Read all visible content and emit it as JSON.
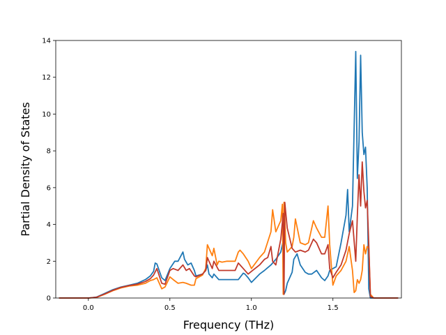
{
  "chart_data": {
    "type": "line",
    "title": "",
    "xlabel": "Frequency (THz)",
    "ylabel": "Partial Density of States",
    "xlim": [
      -0.2,
      1.92
    ],
    "ylim": [
      0,
      14
    ],
    "grid": false,
    "legend": "none",
    "xticks": [
      0.0,
      0.5,
      1.0,
      1.5
    ],
    "xtick_labels": [
      "0.0",
      "0.5",
      "1.0",
      "1.5"
    ],
    "yticks": [
      0,
      2,
      4,
      6,
      8,
      10,
      12,
      14
    ],
    "ytick_labels": [
      "0",
      "2",
      "4",
      "6",
      "8",
      "10",
      "12",
      "14"
    ],
    "series": [
      {
        "color": "#1f77b4",
        "x": [
          -0.18,
          -0.1,
          0.0,
          0.05,
          0.1,
          0.15,
          0.2,
          0.25,
          0.3,
          0.35,
          0.38,
          0.4,
          0.41,
          0.42,
          0.45,
          0.47,
          0.5,
          0.53,
          0.55,
          0.58,
          0.59,
          0.61,
          0.63,
          0.65,
          0.66,
          0.7,
          0.72,
          0.73,
          0.74,
          0.76,
          0.77,
          0.8,
          0.85,
          0.9,
          0.92,
          0.95,
          0.96,
          0.98,
          1.0,
          1.05,
          1.08,
          1.12,
          1.15,
          1.18,
          1.195,
          1.2,
          1.21,
          1.22,
          1.25,
          1.26,
          1.28,
          1.3,
          1.33,
          1.35,
          1.37,
          1.4,
          1.43,
          1.45,
          1.47,
          1.48,
          1.5,
          1.52,
          1.55,
          1.58,
          1.59,
          1.6,
          1.62,
          1.64,
          1.65,
          1.66,
          1.67,
          1.68,
          1.69,
          1.7,
          1.71,
          1.72,
          1.73,
          1.75,
          1.85,
          1.9
        ],
        "y": [
          0,
          0,
          0,
          0.05,
          0.25,
          0.45,
          0.6,
          0.7,
          0.8,
          1.0,
          1.2,
          1.45,
          1.9,
          1.85,
          1.1,
          0.95,
          1.6,
          2.0,
          2.0,
          2.5,
          2.1,
          1.8,
          1.9,
          1.5,
          1.2,
          1.3,
          1.5,
          1.8,
          1.3,
          1.1,
          1.3,
          1.0,
          1.0,
          1.0,
          1.0,
          1.35,
          1.3,
          1.1,
          0.85,
          1.3,
          1.5,
          1.8,
          2.1,
          2.5,
          3.1,
          0.2,
          0.4,
          0.8,
          1.4,
          2.1,
          2.4,
          1.8,
          1.4,
          1.3,
          1.3,
          1.5,
          1.1,
          0.95,
          1.2,
          1.5,
          1.6,
          1.7,
          3.0,
          4.5,
          5.9,
          3.6,
          5.0,
          13.4,
          6.5,
          8.5,
          13.2,
          9.0,
          7.8,
          8.2,
          6.0,
          0.5,
          0,
          0,
          0,
          0
        ]
      },
      {
        "color": "#ff7f0e",
        "x": [
          -0.18,
          -0.1,
          0.0,
          0.05,
          0.1,
          0.15,
          0.2,
          0.25,
          0.3,
          0.35,
          0.38,
          0.4,
          0.42,
          0.45,
          0.47,
          0.5,
          0.52,
          0.55,
          0.58,
          0.6,
          0.63,
          0.65,
          0.66,
          0.7,
          0.72,
          0.73,
          0.74,
          0.76,
          0.77,
          0.79,
          0.8,
          0.82,
          0.85,
          0.9,
          0.92,
          0.93,
          0.95,
          0.98,
          1.0,
          1.05,
          1.08,
          1.12,
          1.13,
          1.15,
          1.18,
          1.19,
          1.195,
          1.2,
          1.205,
          1.21,
          1.22,
          1.25,
          1.26,
          1.27,
          1.3,
          1.33,
          1.35,
          1.38,
          1.4,
          1.43,
          1.45,
          1.47,
          1.48,
          1.5,
          1.52,
          1.55,
          1.58,
          1.6,
          1.62,
          1.63,
          1.64,
          1.65,
          1.66,
          1.67,
          1.68,
          1.69,
          1.7,
          1.71,
          1.72,
          1.73,
          1.75,
          1.85,
          1.9
        ],
        "y": [
          0,
          0,
          0,
          0.03,
          0.2,
          0.4,
          0.55,
          0.65,
          0.7,
          0.8,
          0.95,
          1.0,
          1.1,
          0.5,
          0.6,
          1.15,
          1.0,
          0.8,
          0.85,
          0.8,
          0.7,
          0.7,
          1.05,
          1.25,
          1.6,
          2.9,
          2.7,
          2.3,
          2.7,
          1.8,
          2.0,
          1.95,
          2.0,
          2.0,
          2.5,
          2.6,
          2.4,
          2.0,
          1.6,
          2.2,
          2.5,
          3.6,
          4.8,
          3.6,
          4.2,
          5.1,
          0.2,
          5.2,
          4.5,
          3.0,
          2.5,
          2.8,
          3.3,
          4.3,
          3.0,
          2.9,
          3.0,
          4.2,
          3.8,
          3.3,
          3.3,
          5.0,
          2.9,
          0.7,
          1.2,
          1.5,
          2.0,
          2.8,
          1.5,
          0.3,
          0.4,
          1.0,
          0.8,
          1.0,
          1.5,
          2.9,
          2.4,
          2.8,
          2.7,
          0.2,
          0,
          0,
          0
        ]
      },
      {
        "color": "#c0392b",
        "x": [
          -0.18,
          -0.1,
          0.0,
          0.05,
          0.1,
          0.15,
          0.2,
          0.25,
          0.3,
          0.35,
          0.38,
          0.4,
          0.42,
          0.45,
          0.47,
          0.5,
          0.52,
          0.55,
          0.58,
          0.6,
          0.62,
          0.65,
          0.66,
          0.7,
          0.72,
          0.73,
          0.74,
          0.76,
          0.77,
          0.8,
          0.85,
          0.9,
          0.92,
          0.95,
          0.98,
          1.0,
          1.05,
          1.08,
          1.1,
          1.12,
          1.13,
          1.15,
          1.18,
          1.195,
          1.2,
          1.205,
          1.21,
          1.22,
          1.25,
          1.27,
          1.3,
          1.33,
          1.35,
          1.38,
          1.4,
          1.43,
          1.45,
          1.47,
          1.48,
          1.5,
          1.52,
          1.55,
          1.58,
          1.6,
          1.62,
          1.64,
          1.65,
          1.66,
          1.67,
          1.68,
          1.69,
          1.7,
          1.71,
          1.72,
          1.73,
          1.75,
          1.85,
          1.9
        ],
        "y": [
          0,
          0,
          0,
          0.04,
          0.22,
          0.42,
          0.58,
          0.68,
          0.75,
          0.9,
          1.05,
          1.25,
          1.6,
          0.8,
          0.75,
          1.5,
          1.6,
          1.5,
          1.8,
          1.5,
          1.6,
          1.2,
          1.15,
          1.3,
          1.5,
          2.2,
          2.0,
          1.6,
          2.0,
          1.5,
          1.5,
          1.5,
          1.9,
          1.6,
          1.3,
          1.45,
          1.8,
          2.1,
          2.2,
          2.8,
          2.0,
          1.8,
          3.2,
          4.6,
          0.2,
          5.2,
          4.7,
          3.8,
          2.7,
          2.5,
          2.6,
          2.5,
          2.6,
          3.2,
          3.0,
          2.4,
          2.4,
          2.9,
          1.6,
          1.1,
          1.4,
          1.8,
          2.6,
          3.5,
          4.2,
          2.0,
          4.5,
          6.7,
          5.0,
          7.4,
          5.8,
          4.9,
          5.3,
          2.9,
          0.1,
          0,
          0,
          0
        ]
      }
    ]
  }
}
